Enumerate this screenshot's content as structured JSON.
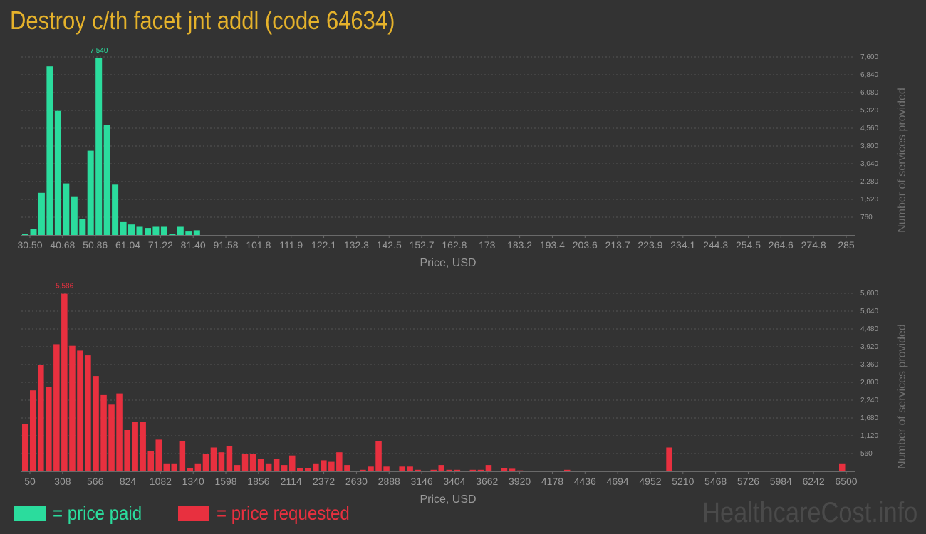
{
  "title": "Destroy c/th facet jnt addl (code 64634)",
  "colors": {
    "paid": "#2bdc9d",
    "requested": "#e8303f",
    "title": "#e5b22b",
    "background": "#333333",
    "axis_text": "#9a9a9a",
    "grid": "#555555"
  },
  "legend": {
    "paid": "= price paid",
    "requested": "= price requested"
  },
  "watermark": "HealthcareCost.info",
  "chart_data": [
    {
      "type": "bar",
      "series_key": "paid",
      "xlabel": "Price, USD",
      "ylabel": "Number of services provided",
      "ylim": [
        0,
        7600
      ],
      "y_ticks": [
        "760",
        "1,520",
        "2,280",
        "3,040",
        "3,800",
        "4,560",
        "5,320",
        "6,080",
        "6,840",
        "7,600"
      ],
      "x_tick_labels": [
        "30.50",
        "40.68",
        "50.86",
        "61.04",
        "71.22",
        "81.40",
        "91.58",
        "101.8",
        "111.9",
        "122.1",
        "132.3",
        "142.5",
        "152.7",
        "162.8",
        "173",
        "183.2",
        "193.4",
        "203.6",
        "213.7",
        "223.9",
        "234.1",
        "244.3",
        "254.5",
        "264.6",
        "274.8",
        "285"
      ],
      "x_start": 30.5,
      "bin_width": 2.546,
      "peak_label": "7,540",
      "values": [
        50,
        250,
        1800,
        7200,
        5300,
        2200,
        1650,
        700,
        3600,
        7540,
        4700,
        2150,
        550,
        450,
        350,
        300,
        350,
        350,
        50,
        350,
        150,
        200,
        0,
        0,
        0,
        0,
        0,
        0,
        0,
        0,
        0,
        0,
        0,
        0,
        0,
        0,
        0,
        0,
        0,
        0,
        0,
        0,
        0,
        0,
        0,
        0,
        0,
        0,
        0,
        0,
        0,
        0,
        0,
        0,
        0,
        0,
        0,
        0,
        0,
        0,
        0,
        0,
        0,
        0,
        0,
        0,
        0,
        0,
        0,
        0,
        0,
        0,
        0,
        0,
        0,
        0,
        0,
        0,
        0,
        0,
        0,
        0,
        0,
        0,
        0,
        0,
        0,
        0,
        0,
        0,
        0,
        0,
        0,
        0,
        0,
        0,
        0,
        0,
        0,
        0,
        0
      ]
    },
    {
      "type": "bar",
      "series_key": "requested",
      "xlabel": "Price, USD",
      "ylabel": "Number of services provided",
      "ylim": [
        0,
        5600
      ],
      "y_ticks": [
        "560",
        "1,120",
        "1,680",
        "2,240",
        "2,800",
        "3,360",
        "3,920",
        "4,480",
        "5,040",
        "5,600"
      ],
      "x_tick_labels": [
        "50",
        "308",
        "566",
        "824",
        "1082",
        "1340",
        "1598",
        "1856",
        "2114",
        "2372",
        "2630",
        "2888",
        "3146",
        "3404",
        "3662",
        "3920",
        "4178",
        "4436",
        "4694",
        "4952",
        "5210",
        "5468",
        "5726",
        "5984",
        "6242",
        "6500"
      ],
      "x_start": 50,
      "bin_width": 64.5,
      "peak_label": "5,586",
      "values": [
        1500,
        2550,
        3350,
        2650,
        4000,
        5586,
        3950,
        3800,
        3650,
        3000,
        2400,
        2100,
        2450,
        1300,
        1550,
        1550,
        650,
        1000,
        250,
        250,
        950,
        100,
        250,
        550,
        750,
        600,
        800,
        200,
        550,
        550,
        400,
        250,
        400,
        200,
        500,
        100,
        100,
        250,
        350,
        300,
        600,
        200,
        0,
        50,
        150,
        950,
        150,
        0,
        150,
        150,
        50,
        0,
        50,
        200,
        50,
        50,
        0,
        50,
        50,
        200,
        0,
        100,
        80,
        30,
        0,
        0,
        0,
        0,
        0,
        50,
        0,
        0,
        0,
        0,
        0,
        0,
        0,
        0,
        0,
        0,
        0,
        0,
        750,
        0,
        0,
        0,
        0,
        0,
        0,
        0,
        0,
        0,
        0,
        0,
        0,
        0,
        0,
        0,
        0,
        0,
        0,
        0,
        0,
        0,
        250
      ]
    }
  ]
}
